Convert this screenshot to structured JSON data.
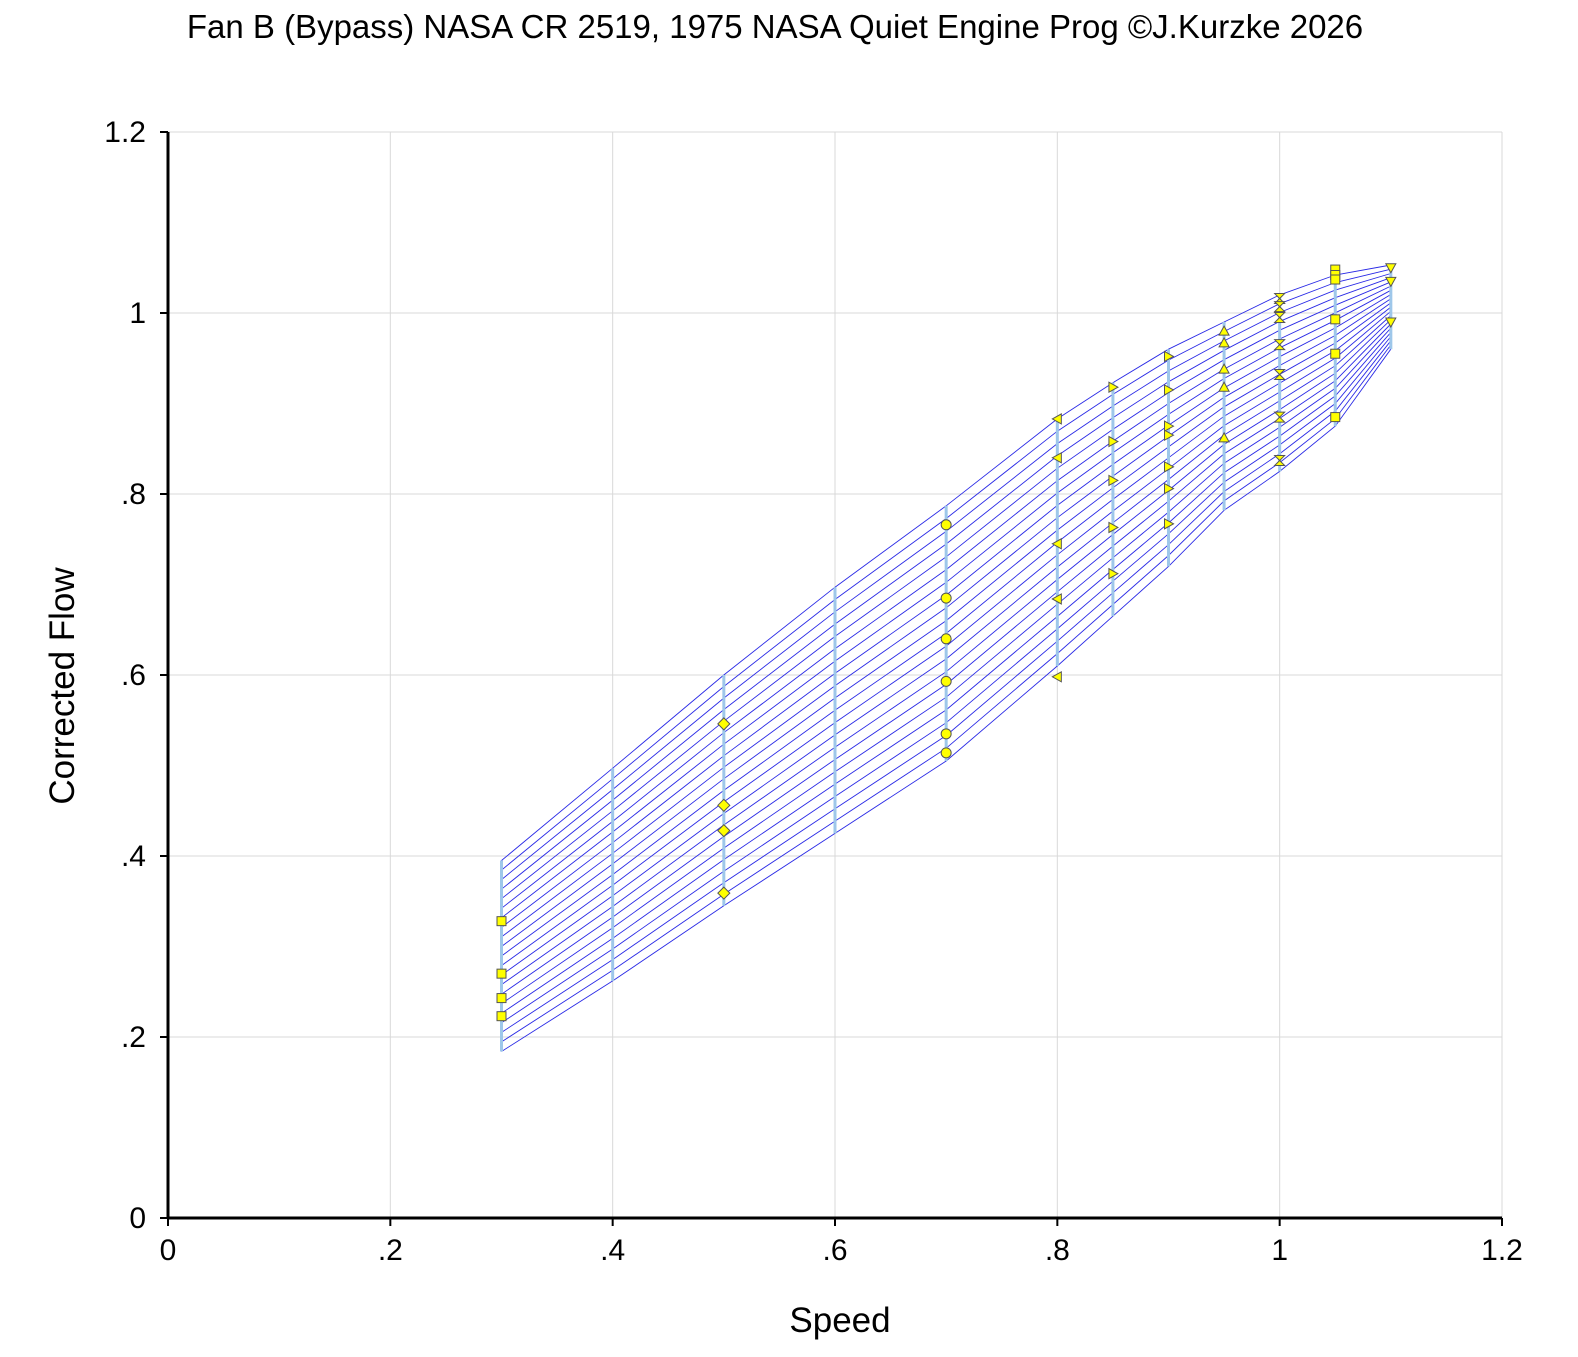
{
  "chart_data": {
    "type": "line",
    "title": "Fan B (Bypass) NASA CR 2519, 1975 NASA Quiet Engine Prog ©J.Kurzke 2026",
    "xlabel": "Speed",
    "ylabel": "Corrected Flow",
    "xlim": [
      0,
      1.2
    ],
    "ylim": [
      0,
      1.2
    ],
    "x_ticks": [
      {
        "value": 0,
        "label": "0"
      },
      {
        "value": 0.2,
        "label": ".2"
      },
      {
        "value": 0.4,
        "label": ".4"
      },
      {
        "value": 0.6,
        "label": ".6"
      },
      {
        "value": 0.8,
        "label": ".8"
      },
      {
        "value": 1.0,
        "label": "1"
      },
      {
        "value": 1.2,
        "label": "1.2"
      }
    ],
    "y_ticks": [
      {
        "value": 0,
        "label": "0"
      },
      {
        "value": 0.2,
        "label": ".2"
      },
      {
        "value": 0.4,
        "label": ".4"
      },
      {
        "value": 0.6,
        "label": ".6"
      },
      {
        "value": 0.8,
        "label": ".8"
      },
      {
        "value": 1.0,
        "label": "1"
      },
      {
        "value": 1.2,
        "label": "1.2"
      }
    ],
    "grid": true,
    "colors": {
      "beta_lines": "#2a2ae6",
      "speed_lines": "#9ec7ea",
      "marker_fill": "#ffff00",
      "marker_stroke": "#555555",
      "grid": "#d9d9d9",
      "axis": "#000000"
    },
    "speed_lines": [
      {
        "speed": 0.3,
        "flow_min": 0.184,
        "flow_max": 0.395
      },
      {
        "speed": 0.4,
        "flow_min": 0.262,
        "flow_max": 0.497
      },
      {
        "speed": 0.5,
        "flow_min": 0.345,
        "flow_max": 0.6
      },
      {
        "speed": 0.6,
        "flow_min": 0.425,
        "flow_max": 0.697
      },
      {
        "speed": 0.7,
        "flow_min": 0.505,
        "flow_max": 0.787
      },
      {
        "speed": 0.8,
        "flow_min": 0.61,
        "flow_max": 0.883
      },
      {
        "speed": 0.85,
        "flow_min": 0.665,
        "flow_max": 0.923
      },
      {
        "speed": 0.9,
        "flow_min": 0.72,
        "flow_max": 0.96
      },
      {
        "speed": 0.95,
        "flow_min": 0.782,
        "flow_max": 0.99
      },
      {
        "speed": 1.0,
        "flow_min": 0.825,
        "flow_max": 1.02
      },
      {
        "speed": 1.05,
        "flow_min": 0.875,
        "flow_max": 1.042
      },
      {
        "speed": 1.1,
        "flow_min": 0.96,
        "flow_max": 1.053
      }
    ],
    "beta_line_count": 21,
    "measured_points": [
      {
        "speed": 0.3,
        "marker": "square",
        "flow": [
          0.328,
          0.27,
          0.243,
          0.223
        ]
      },
      {
        "speed": 0.5,
        "marker": "diamond",
        "flow": [
          0.546,
          0.456,
          0.428,
          0.359
        ]
      },
      {
        "speed": 0.7,
        "marker": "circle",
        "flow": [
          0.766,
          0.685,
          0.64,
          0.593,
          0.535,
          0.514
        ]
      },
      {
        "speed": 0.8,
        "marker": "triangle-left",
        "flow": [
          0.883,
          0.84,
          0.745,
          0.684,
          0.598
        ]
      },
      {
        "speed": 0.85,
        "marker": "triangle-right",
        "flow": [
          0.918,
          0.858,
          0.815,
          0.763,
          0.712
        ]
      },
      {
        "speed": 0.9,
        "marker": "triangle-right",
        "flow": [
          0.952,
          0.915,
          0.875,
          0.865,
          0.83,
          0.806,
          0.767
        ]
      },
      {
        "speed": 0.95,
        "marker": "triangle-up",
        "flow": [
          0.98,
          0.967,
          0.938,
          0.918,
          0.862
        ]
      },
      {
        "speed": 1.0,
        "marker": "hourglass",
        "flow": [
          1.016,
          1.007,
          0.995,
          0.965,
          0.932,
          0.885,
          0.837
        ]
      },
      {
        "speed": 1.05,
        "marker": "square",
        "flow": [
          1.048,
          1.042,
          1.037,
          0.993,
          0.955,
          0.885
        ]
      },
      {
        "speed": 1.1,
        "marker": "triangle-down",
        "flow": [
          1.05,
          1.035,
          0.99
        ]
      }
    ]
  }
}
